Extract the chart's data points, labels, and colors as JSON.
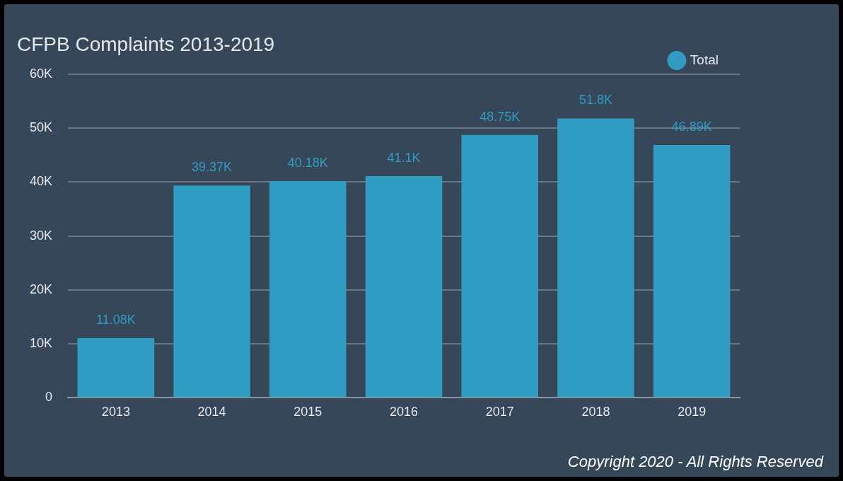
{
  "chart_data": {
    "type": "bar",
    "title": "CFPB Complaints 2013-2019",
    "categories": [
      "2013",
      "2014",
      "2015",
      "2016",
      "2017",
      "2018",
      "2019"
    ],
    "series": [
      {
        "name": "Total",
        "color": "#319cc2",
        "values": [
          11080,
          39370,
          40180,
          41100,
          48750,
          51800,
          46890
        ],
        "value_labels": [
          "11.08K",
          "39.37K",
          "40.18K",
          "41.1K",
          "48.75K",
          "51.8K",
          "46.89K"
        ]
      }
    ],
    "ylim": [
      0,
      60000
    ],
    "yticks": [
      0,
      {
        "value": 10000,
        "label": "10K"
      },
      {
        "value": 20000,
        "label": "20K"
      },
      {
        "value": 30000,
        "label": "30K"
      },
      {
        "value": 40000,
        "label": "40K"
      },
      {
        "value": 50000,
        "label": "50K"
      },
      {
        "value": 60000,
        "label": "60K"
      }
    ],
    "grid": "y",
    "legend": "top right",
    "annotations": [
      "Copyright 2020 - All Rights Reserved"
    ]
  }
}
